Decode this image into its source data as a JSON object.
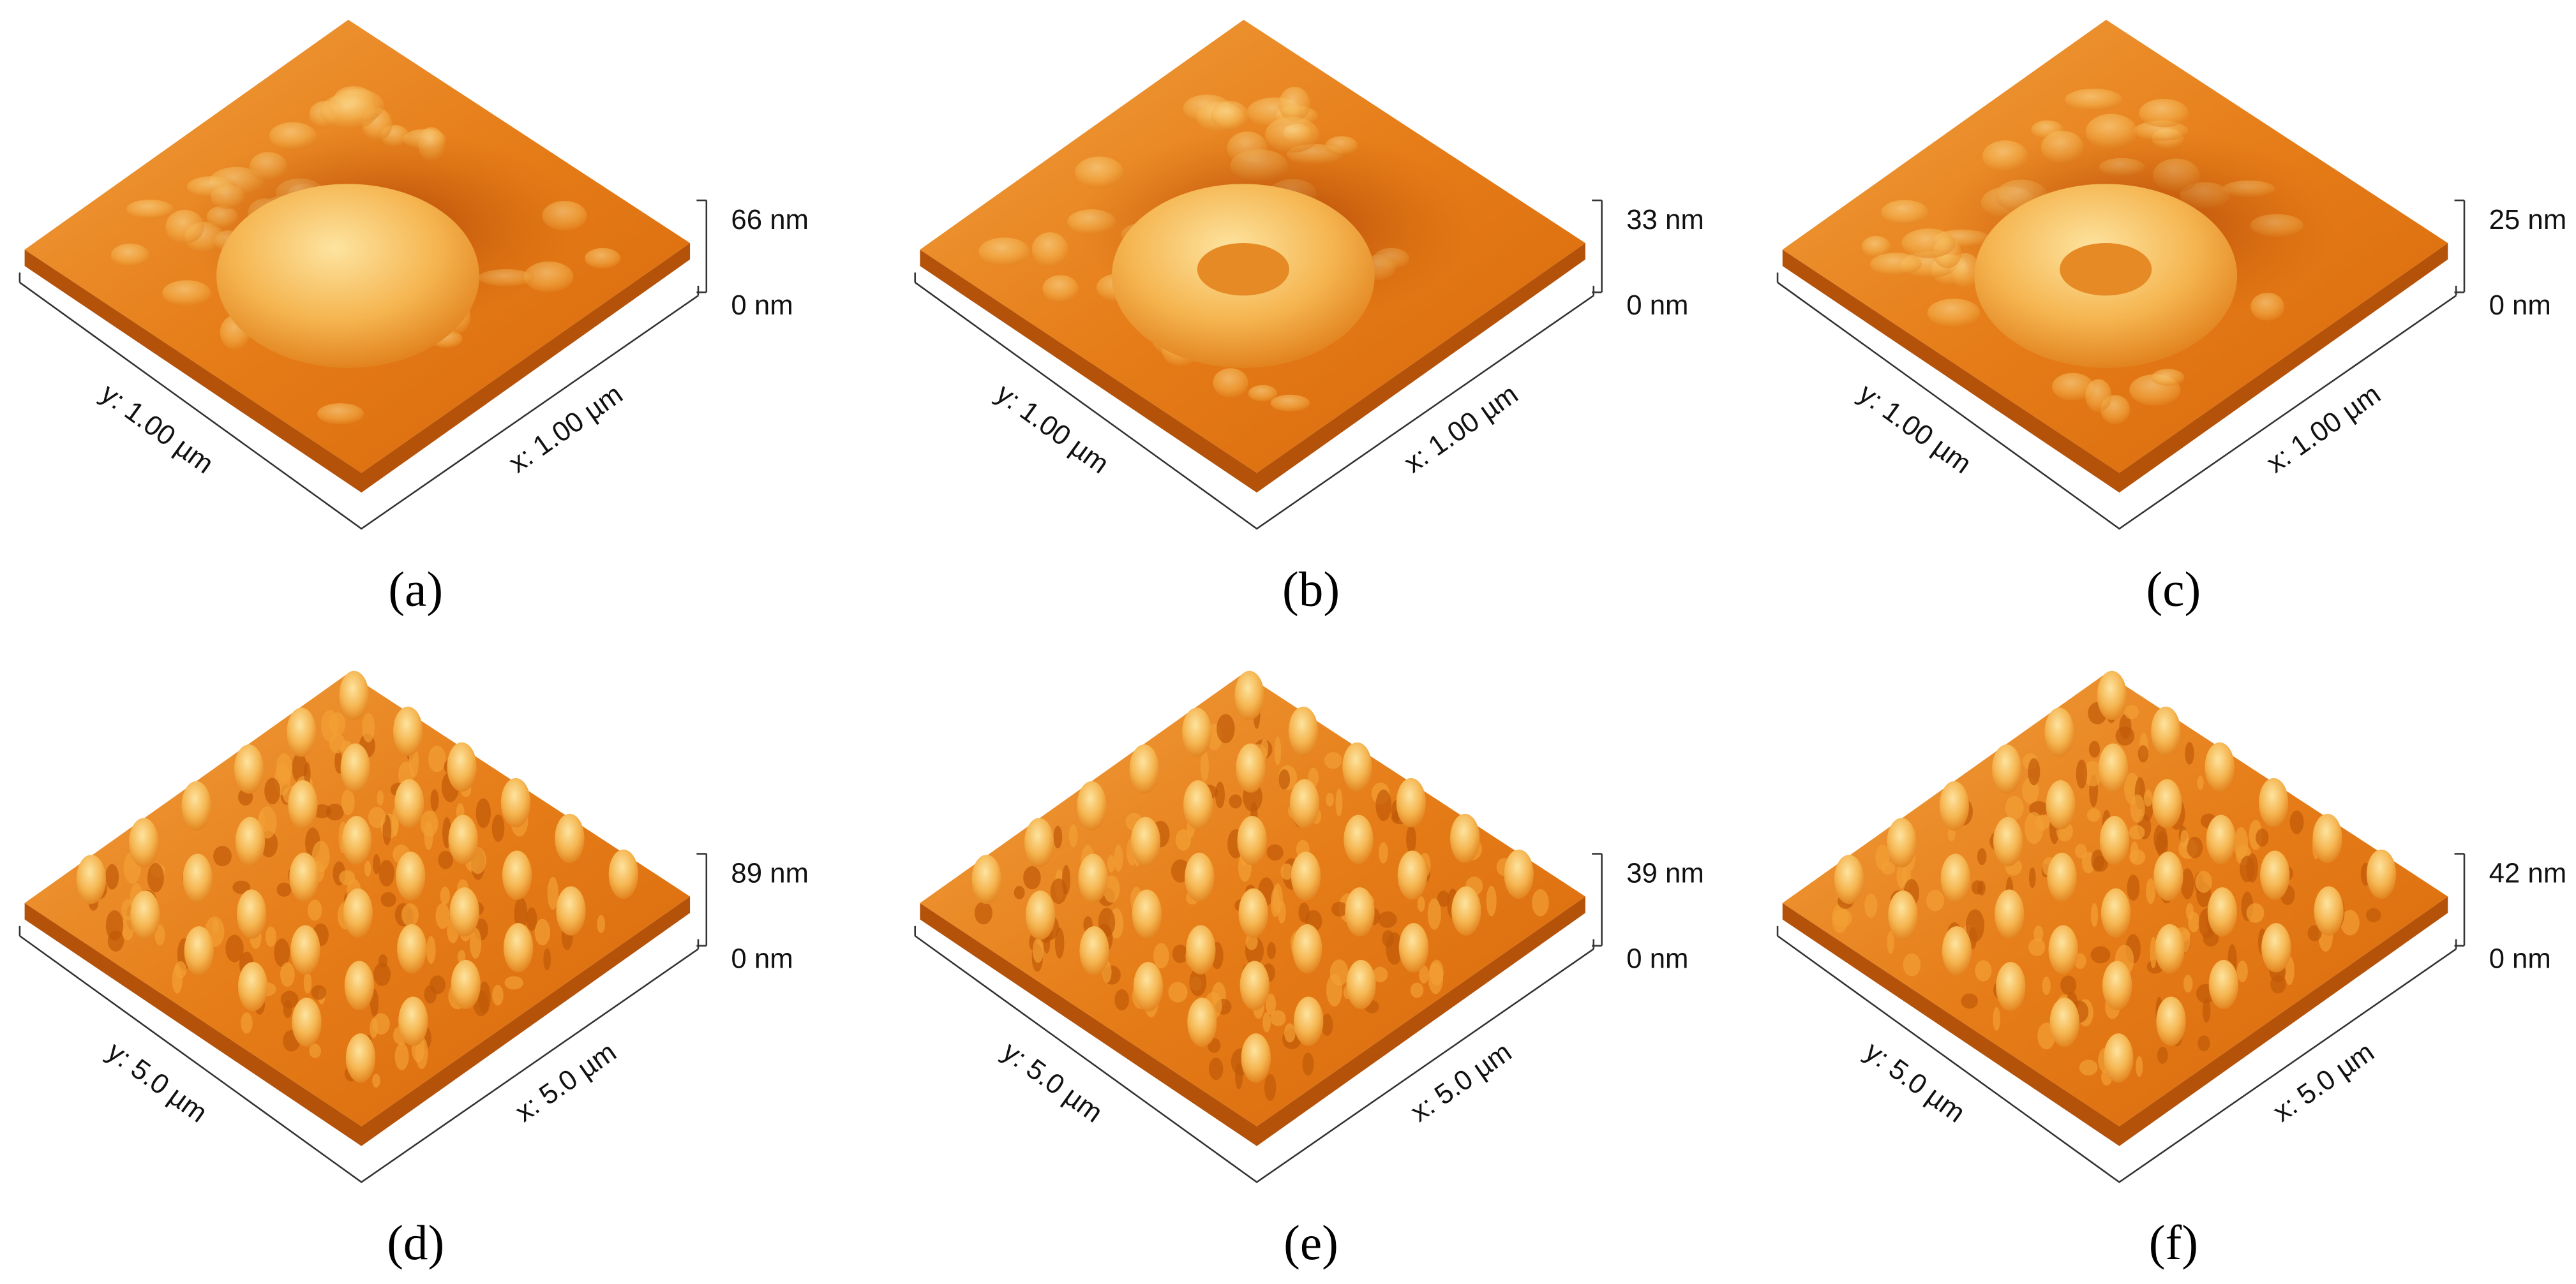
{
  "panels": [
    {
      "label": "(a)",
      "z_max": "66 nm",
      "z_min": "0 nm",
      "x_axis": "x: 1.00 µm",
      "y_axis": "y: 1.00 µm"
    },
    {
      "label": "(b)",
      "z_max": "33 nm",
      "z_min": "0 nm",
      "x_axis": "x: 1.00 µm",
      "y_axis": "y: 1.00 µm"
    },
    {
      "label": "(c)",
      "z_max": "25 nm",
      "z_min": "0 nm",
      "x_axis": "x: 1.00 µm",
      "y_axis": "y: 1.00 µm"
    },
    {
      "label": "(d)",
      "z_max": "89 nm",
      "z_min": "0 nm",
      "x_axis": "x: 5.0 µm",
      "y_axis": "y: 5.0 µm"
    },
    {
      "label": "(e)",
      "z_max": "39 nm",
      "z_min": "0 nm",
      "x_axis": "x: 5.0 µm",
      "y_axis": "y: 5.0 µm"
    },
    {
      "label": "(f)",
      "z_max": "42 nm",
      "z_min": "0 nm",
      "x_axis": "x: 5.0 µm",
      "y_axis": "y: 5.0 µm"
    }
  ]
}
